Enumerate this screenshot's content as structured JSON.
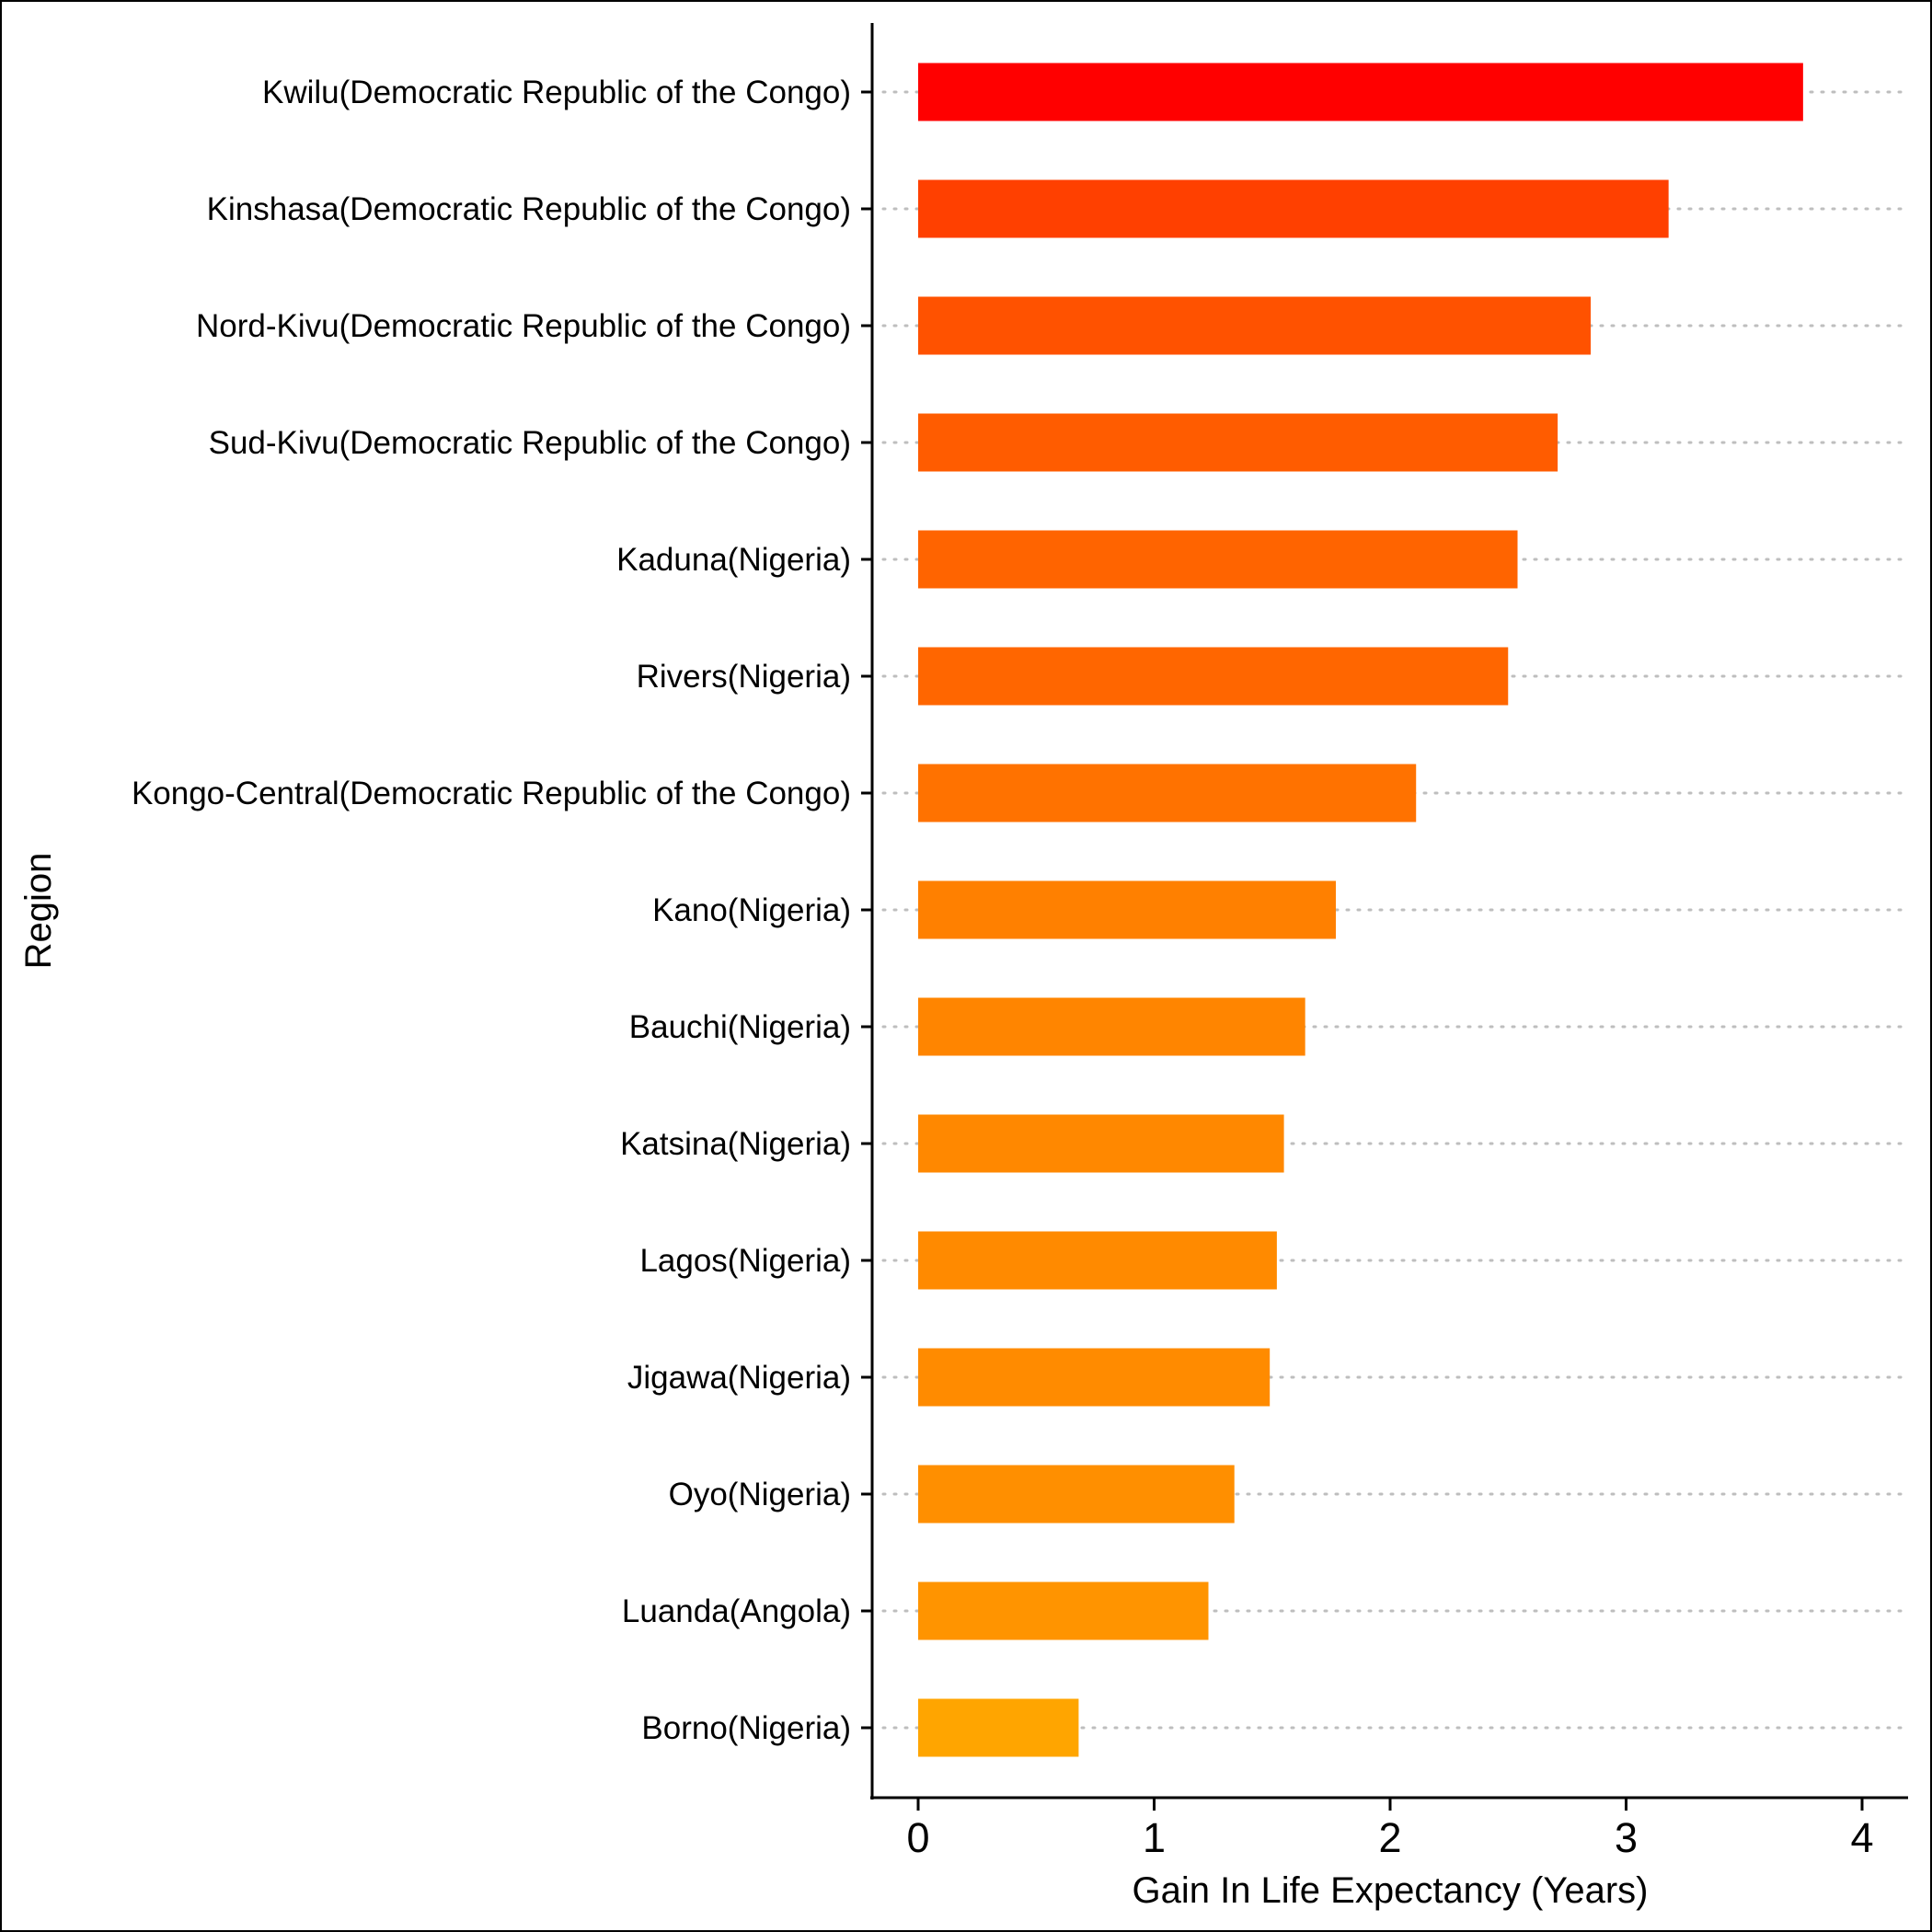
{
  "chart_data": {
    "type": "bar",
    "orientation": "horizontal",
    "title": "",
    "xlabel": "Gain In Life Expectancy (Years)",
    "ylabel": "Region",
    "xlim": [
      -0.2,
      4.2
    ],
    "xticks": [
      "0",
      "1",
      "2",
      "3",
      "4"
    ],
    "grid": "dotted horizontal lines per category",
    "legend": "none",
    "categories": [
      "Kwilu(Democratic Republic of the Congo)",
      "Kinshasa(Democratic Republic of the Congo)",
      "Nord-Kivu(Democratic Republic of the Congo)",
      "Sud-Kivu(Democratic Republic of the Congo)",
      "Kaduna(Nigeria)",
      "Rivers(Nigeria)",
      "Kongo-Central(Democratic Republic of the Congo)",
      "Kano(Nigeria)",
      "Bauchi(Nigeria)",
      "Katsina(Nigeria)",
      "Lagos(Nigeria)",
      "Jigawa(Nigeria)",
      "Oyo(Nigeria)",
      "Luanda(Angola)",
      "Borno(Nigeria)"
    ],
    "values": [
      3.75,
      3.18,
      2.85,
      2.71,
      2.54,
      2.5,
      2.11,
      1.77,
      1.64,
      1.55,
      1.52,
      1.49,
      1.34,
      1.23,
      0.68
    ],
    "colors": [
      "#FF0000",
      "#FF4000",
      "#FF5200",
      "#FF5C00",
      "#FF6400",
      "#FF6600",
      "#FF7200",
      "#FF8000",
      "#FF8500",
      "#FF8800",
      "#FF8A00",
      "#FF8B00",
      "#FF8F00",
      "#FF9400",
      "#FFA500"
    ]
  }
}
